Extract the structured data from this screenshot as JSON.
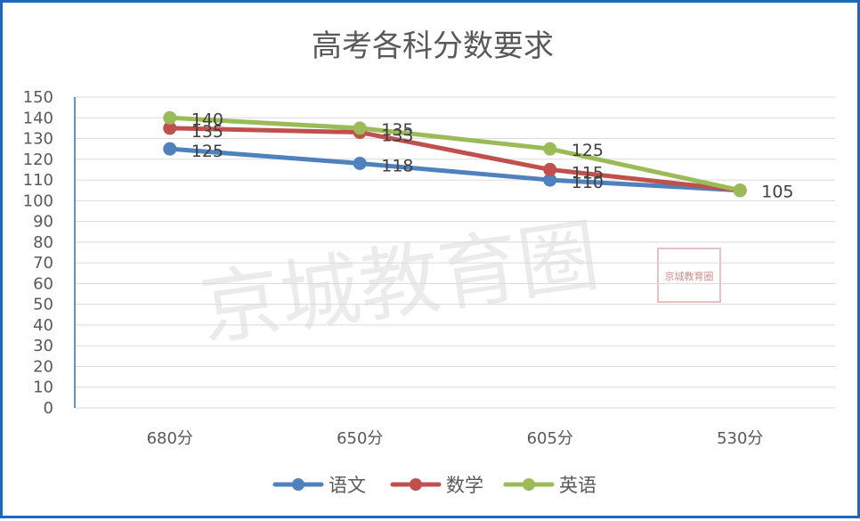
{
  "chart_data": {
    "type": "line",
    "title": "高考各科分数要求",
    "categories": [
      "680分",
      "650分",
      "605分",
      "530分"
    ],
    "ylim": [
      0,
      150
    ],
    "ytick_step": 10,
    "grid": true,
    "legend_position": "bottom",
    "series": [
      {
        "name": "语文",
        "color": "#4f81bd",
        "values": [
          125,
          118,
          110,
          105
        ]
      },
      {
        "name": "数学",
        "color": "#c0504d",
        "values": [
          135,
          133,
          115,
          105
        ]
      },
      {
        "name": "英语",
        "color": "#9bbb59",
        "values": [
          140,
          135,
          125,
          105
        ]
      }
    ],
    "data_labels": {
      "语文": [
        "125",
        "118",
        "110",
        ""
      ],
      "数学": [
        "135",
        "133",
        "115",
        ""
      ],
      "英语": [
        "140",
        "135",
        "125",
        "105"
      ]
    }
  },
  "watermark": {
    "text": "京城教育圈",
    "seal": "京城教育圈"
  }
}
